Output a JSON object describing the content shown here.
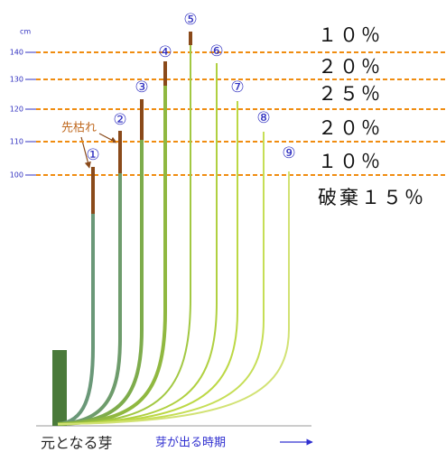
{
  "axis": {
    "unit": "cm",
    "ticks": [
      "140",
      "130",
      "120",
      "110",
      "100"
    ]
  },
  "shares": [
    "１０％",
    "２０％",
    "２５％",
    "２０％",
    "１０％",
    "破棄１５％"
  ],
  "shoots": [
    "①",
    "②",
    "③",
    "④",
    "⑤",
    "⑥",
    "⑦",
    "⑧",
    "⑨"
  ],
  "note": "先枯れ",
  "base_label": "元となる芽",
  "time_label": "芽が出る時期"
}
